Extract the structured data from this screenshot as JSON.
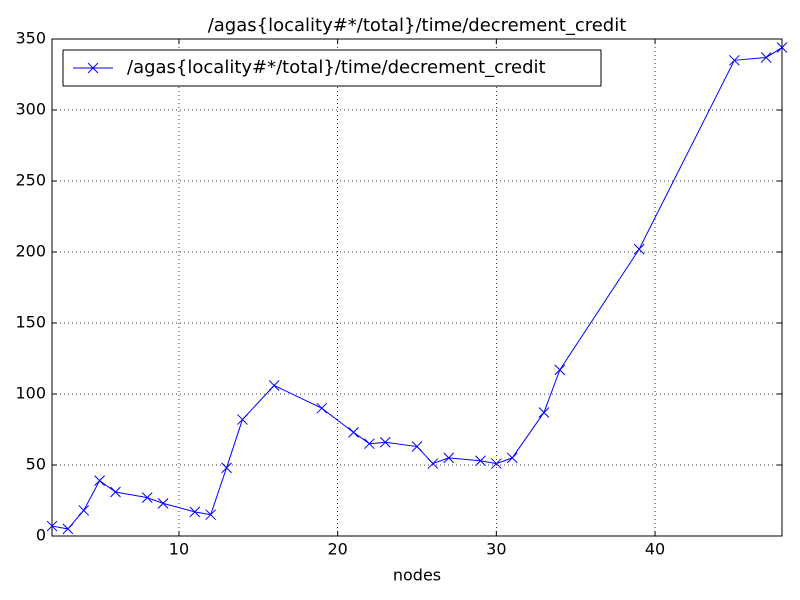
{
  "chart_data": {
    "type": "line",
    "title": "/agas{locality#*/total}/time/decrement_credit",
    "x_label": "nodes",
    "x": [
      2,
      3,
      4,
      5,
      6,
      8,
      9,
      11,
      12,
      13,
      14,
      16,
      19,
      21,
      22,
      23,
      25,
      26,
      27,
      29,
      30,
      31,
      33,
      34,
      39,
      45,
      47,
      48
    ],
    "series": [
      {
        "name": "/agas{locality#*/total}/time/decrement_credit",
        "color": "#0000ff",
        "values": [
          7,
          5,
          18,
          39,
          31,
          27,
          23,
          17,
          15,
          48,
          82,
          106,
          90,
          73,
          65,
          66,
          63,
          51,
          55,
          53,
          51,
          55,
          87,
          117,
          202,
          335,
          337,
          344
        ]
      }
    ],
    "xlim": [
      2,
      48
    ],
    "xticks": [
      10,
      20,
      30,
      40
    ],
    "ylim": [
      0,
      350
    ],
    "yticks": [
      0,
      50,
      100,
      150,
      200,
      250,
      300,
      350
    ],
    "grid": true,
    "legend": "upper-left",
    "marker": "x"
  }
}
